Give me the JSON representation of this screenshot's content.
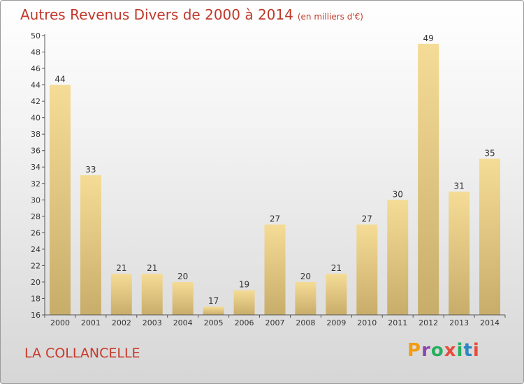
{
  "title": "Autres Revenus Divers de 2000 à 2014",
  "unit_label": "(en milliers d'€)",
  "commune": "LA COLLANCELLE",
  "logo_text": "Proxiti",
  "chart_data": {
    "type": "bar",
    "title": "Autres Revenus Divers de 2000 à 2014",
    "subtitle": "(en milliers d'€)",
    "categories": [
      "2000",
      "2001",
      "2002",
      "2003",
      "2004",
      "2005",
      "2006",
      "2007",
      "2008",
      "2009",
      "2010",
      "2011",
      "2012",
      "2013",
      "2014"
    ],
    "values": [
      44,
      33,
      21,
      21,
      20,
      17,
      19,
      27,
      20,
      21,
      27,
      30,
      49,
      31,
      35
    ],
    "ylim": [
      16,
      50
    ],
    "yticks": [
      16,
      18,
      20,
      22,
      24,
      26,
      28,
      30,
      32,
      34,
      36,
      38,
      40,
      42,
      44,
      46,
      48,
      50
    ],
    "grid": false,
    "bar_color_top": "#f5dc96",
    "bar_color_bottom": "#c8ad6a",
    "title_color": "#c0392b"
  }
}
